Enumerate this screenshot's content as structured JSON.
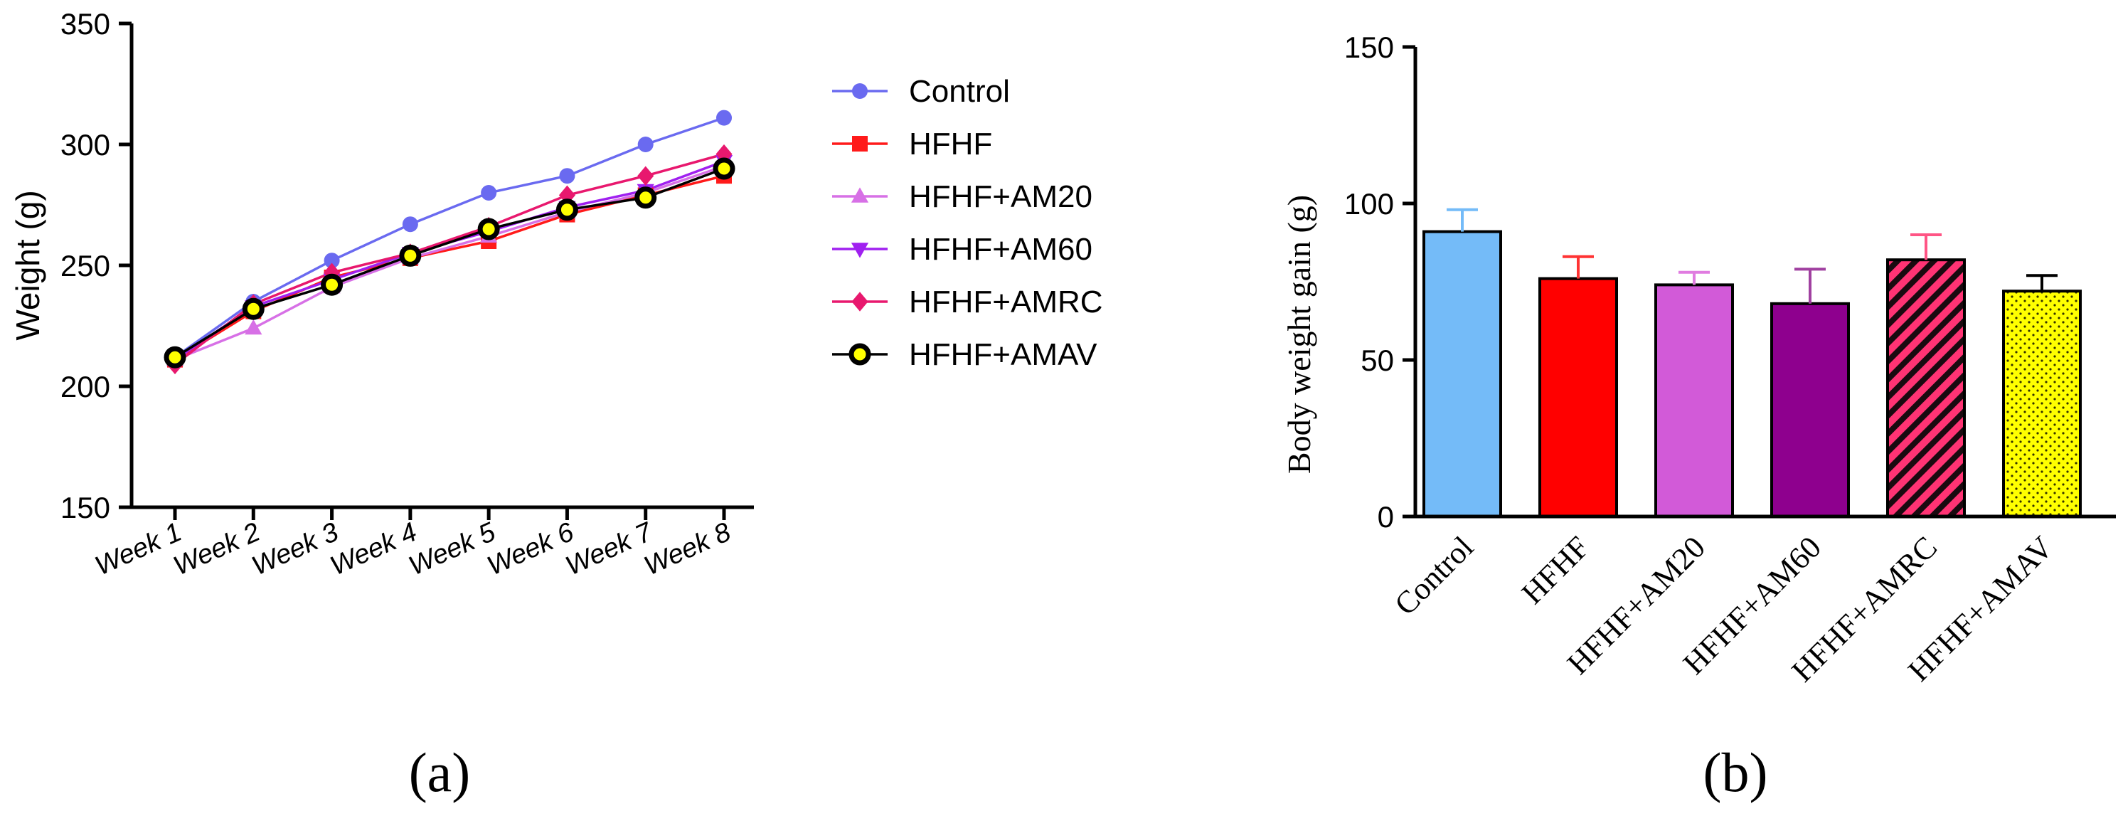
{
  "chart_data": [
    {
      "type": "line",
      "panel_label": "(a)",
      "title": "",
      "xlabel": "",
      "ylabel": "Weight (g)",
      "ylim": [
        150,
        350
      ],
      "yticks": [
        150,
        200,
        250,
        300,
        350
      ],
      "categories": [
        "Week 1",
        "Week 2",
        "Week 3",
        "Week 4",
        "Week 5",
        "Week 6",
        "Week 7",
        "Week 8"
      ],
      "legend_position": "right",
      "series": [
        {
          "name": "Control",
          "color": "#6a6af0",
          "marker": "circle",
          "values": [
            212,
            235,
            252,
            267,
            280,
            287,
            300,
            311
          ]
        },
        {
          "name": "HFHF",
          "color": "#ff1a1a",
          "marker": "square",
          "values": [
            211,
            231,
            245,
            253,
            260,
            271,
            279,
            287
          ]
        },
        {
          "name": "HFHF+AM20",
          "color": "#d770e6",
          "marker": "triangle-up",
          "values": [
            211,
            224,
            241,
            253,
            262,
            272,
            280,
            291
          ]
        },
        {
          "name": "HFHF+AM60",
          "color": "#a020f0",
          "marker": "triangle-down",
          "values": [
            211,
            233,
            244,
            255,
            264,
            274,
            281,
            293
          ]
        },
        {
          "name": "HFHF+AMRC",
          "color": "#e8186e",
          "marker": "diamond",
          "values": [
            209,
            234,
            247,
            255,
            266,
            279,
            287,
            296
          ]
        },
        {
          "name": "HFHF+AMAV",
          "color": "#000000",
          "marker": "circle-yellow",
          "values": [
            212,
            232,
            242,
            254,
            265,
            273,
            278,
            290
          ]
        }
      ]
    },
    {
      "type": "bar",
      "panel_label": "(b)",
      "title": "",
      "xlabel": "",
      "ylabel": "Body weight gain (g)",
      "ylim": [
        0,
        150
      ],
      "yticks": [
        0,
        50,
        100,
        150
      ],
      "categories": [
        "Control",
        "HFHF",
        "HFHF+AM20",
        "HFHF+AM60",
        "HFHF+AMRC",
        "HFHF+AMAV"
      ],
      "values": [
        91,
        76,
        74,
        68,
        82,
        72
      ],
      "errors": [
        7,
        7,
        4,
        11,
        8,
        5
      ],
      "colors": [
        "#74bbf8",
        "#ff0000",
        "#d25ad8",
        "#8e008e",
        "#ff3374",
        "#ffff00"
      ],
      "error_colors": [
        "#74bbf8",
        "#ff3333",
        "#e07ce0",
        "#a040a0",
        "#ff5585",
        "#000000"
      ],
      "patterns": [
        "solid",
        "solid",
        "solid",
        "solid",
        "hatch",
        "dots"
      ]
    }
  ]
}
